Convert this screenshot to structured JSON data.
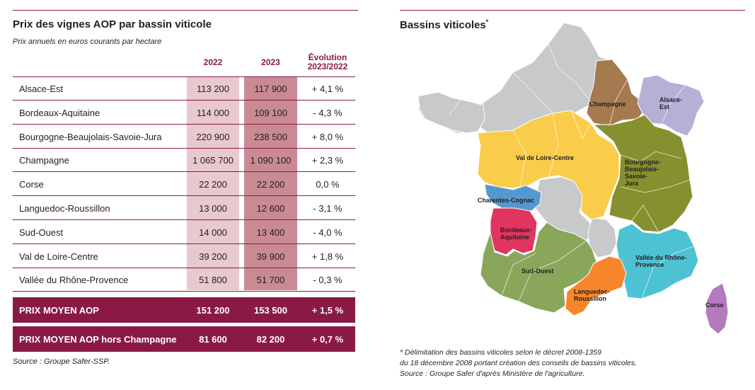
{
  "left": {
    "title": "Prix des vignes AOP par bassin viticole",
    "subtitle": "Prix annuels en euros courants par hectare",
    "headers": {
      "y2022": "2022",
      "y2023": "2023",
      "evo_line1": "Évolution",
      "evo_line2": "2023/2022"
    },
    "rows": [
      {
        "name": "Alsace-Est",
        "v2022": "113 200",
        "v2023": "117 900",
        "evo": "+ 4,1 %"
      },
      {
        "name": "Bordeaux-Aquitaine",
        "v2022": "114 000",
        "v2023": "109 100",
        "evo": "- 4,3 %"
      },
      {
        "name": "Bourgogne-Beaujolais-Savoie-Jura",
        "v2022": "220 900",
        "v2023": "238 500",
        "evo": "+ 8,0 %"
      },
      {
        "name": "Champagne",
        "v2022": "1 065 700",
        "v2023": "1 090 100",
        "evo": "+ 2,3 %"
      },
      {
        "name": "Corse",
        "v2022": "22 200",
        "v2023": "22 200",
        "evo": "0,0 %"
      },
      {
        "name": "Languedoc-Roussillon",
        "v2022": "13 000",
        "v2023": "12 600",
        "evo": "- 3,1 %"
      },
      {
        "name": "Sud-Ouest",
        "v2022": "14 000",
        "v2023": "13 400",
        "evo": "- 4,0 %"
      },
      {
        "name": "Val de Loire-Centre",
        "v2022": "39 200",
        "v2023": "39 900",
        "evo": "+ 1,8 %"
      },
      {
        "name": "Vallée du Rhône-Provence",
        "v2022": "51 800",
        "v2023": "51 700",
        "evo": "- 0,3 %"
      }
    ],
    "totals": [
      {
        "name": "PRIX MOYEN AOP",
        "v2022": "151 200",
        "v2023": "153 500",
        "evo": "+ 1,5 %"
      },
      {
        "name": "PRIX MOYEN AOP hors Champagne",
        "v2022": "81 600",
        "v2023": "82 200",
        "evo": "+ 0,7 %"
      }
    ],
    "source": "Source : Groupe Safer-SSP."
  },
  "right": {
    "title": "Bassins viticoles",
    "title_mark": "*",
    "regions": {
      "champagne": "Champagne",
      "alsace_line1": "Alsace-",
      "alsace_line2": "Est",
      "loire": "Val de Loire-Centre",
      "bourgogne_line1": "Bourgogne-",
      "bourgogne_line2": "Beaujolais-",
      "bourgogne_line3": "Savoie-",
      "bourgogne_line4": "Jura",
      "charentes": "Charentes-Cognac",
      "bordeaux_line1": "Bordeaux-",
      "bordeaux_line2": "Aquitaine",
      "sudouest": "Sud-Ouest",
      "rhone_line1": "Vallée du Rhône-",
      "rhone_line2": "Provence",
      "languedoc_line1": "Languedoc-",
      "languedoc_line2": "Roussillon",
      "corse": "Corse"
    },
    "colors": {
      "champagne": "#a57a4f",
      "alsace": "#b4b0d6",
      "loire": "#f9cd4a",
      "bourgogne": "#87902e",
      "charentes": "#5498cf",
      "bordeaux": "#e0355f",
      "sudouest": "#8aa65a",
      "rhone": "#4cc2d3",
      "languedoc": "#f7862a",
      "corse": "#b37bbd",
      "other": "#c8c9cb"
    },
    "note_line1": "* Délimitation des bassins viticoles selon le décret 2008-1359",
    "note_line2": "du 18 décembre 2008 portant création des conseils de bassins viticoles.",
    "note_line3": "Source : Groupe Safer d'après Ministère de l'agriculture."
  }
}
